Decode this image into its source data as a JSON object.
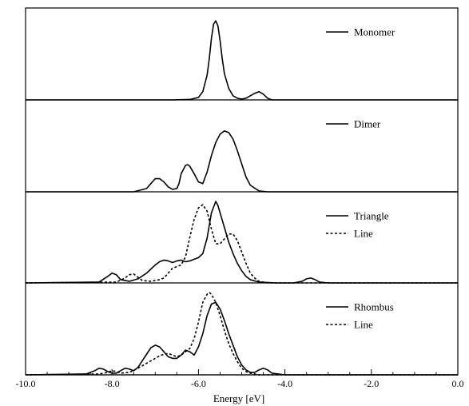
{
  "chart_data": {
    "type": "line",
    "xlabel": "Energy [eV]",
    "xlim": [
      -10.0,
      0.0
    ],
    "x_ticks": [
      -10.0,
      -8.0,
      -6.0,
      -4.0,
      -2.0,
      0.0
    ],
    "x_tick_labels": [
      "-10.0",
      "-8.0",
      "-6.0",
      "-4.0",
      "-2.0",
      "0.0"
    ],
    "grid": false,
    "legend_position": "top-right",
    "panels": [
      {
        "ylim": [
          0,
          1.0
        ],
        "series": [
          {
            "name": "Monomer",
            "style": "solid",
            "x": [
              -10.0,
              -6.6,
              -6.2,
              -6.0,
              -5.9,
              -5.8,
              -5.75,
              -5.7,
              -5.65,
              -5.6,
              -5.55,
              -5.5,
              -5.45,
              -5.4,
              -5.3,
              -5.2,
              -5.1,
              -5.0,
              -4.9,
              -4.8,
              -4.7,
              -4.6,
              -4.5,
              -4.4,
              -4.3,
              -3.0,
              0.0
            ],
            "y": [
              0,
              0,
              0.005,
              0.03,
              0.1,
              0.3,
              0.5,
              0.75,
              0.92,
              0.96,
              0.9,
              0.72,
              0.5,
              0.32,
              0.14,
              0.05,
              0.02,
              0.01,
              0.02,
              0.05,
              0.08,
              0.1,
              0.07,
              0.02,
              0.0,
              0,
              0
            ]
          }
        ]
      },
      {
        "ylim": [
          0,
          1.0
        ],
        "series": [
          {
            "name": "Dimer",
            "style": "solid",
            "x": [
              -10.0,
              -7.5,
              -7.2,
              -7.1,
              -7.0,
              -6.9,
              -6.8,
              -6.7,
              -6.6,
              -6.5,
              -6.45,
              -6.4,
              -6.3,
              -6.25,
              -6.2,
              -6.1,
              -6.0,
              -5.9,
              -5.8,
              -5.7,
              -5.6,
              -5.5,
              -5.4,
              -5.3,
              -5.2,
              -5.1,
              -5.0,
              -4.9,
              -4.8,
              -4.6,
              -4.4,
              -4.2,
              -3.0,
              0.0
            ],
            "y": [
              0,
              0,
              0.04,
              0.1,
              0.16,
              0.16,
              0.12,
              0.06,
              0.03,
              0.04,
              0.1,
              0.22,
              0.32,
              0.33,
              0.31,
              0.22,
              0.12,
              0.1,
              0.24,
              0.44,
              0.6,
              0.7,
              0.74,
              0.72,
              0.64,
              0.5,
              0.34,
              0.18,
              0.08,
              0.01,
              0.0,
              0.0,
              0,
              0
            ]
          }
        ]
      },
      {
        "ylim": [
          0,
          1.0
        ],
        "series": [
          {
            "name": "Triangle",
            "style": "solid",
            "x": [
              -10.0,
              -8.3,
              -8.1,
              -8.0,
              -7.9,
              -7.8,
              -7.6,
              -7.4,
              -7.2,
              -7.0,
              -6.9,
              -6.8,
              -6.7,
              -6.6,
              -6.5,
              -6.4,
              -6.3,
              -6.2,
              -6.1,
              -6.0,
              -5.9,
              -5.8,
              -5.7,
              -5.6,
              -5.55,
              -5.5,
              -5.4,
              -5.3,
              -5.2,
              -5.1,
              -5.0,
              -4.9,
              -4.8,
              -4.6,
              -4.2,
              -3.8,
              -3.6,
              -3.5,
              -3.4,
              -3.3,
              -3.2,
              -3.0,
              0.0
            ],
            "y": [
              0,
              0.01,
              0.08,
              0.12,
              0.1,
              0.04,
              0.02,
              0.05,
              0.12,
              0.22,
              0.26,
              0.28,
              0.27,
              0.25,
              0.27,
              0.28,
              0.26,
              0.27,
              0.29,
              0.31,
              0.36,
              0.55,
              0.86,
              1.0,
              0.95,
              0.86,
              0.68,
              0.5,
              0.36,
              0.24,
              0.15,
              0.08,
              0.04,
              0.01,
              0.0,
              0.0,
              0.02,
              0.05,
              0.06,
              0.04,
              0.01,
              0,
              0
            ]
          },
          {
            "name": "Line",
            "style": "dashed",
            "x": [
              -10.0,
              -7.9,
              -7.7,
              -7.6,
              -7.5,
              -7.4,
              -7.3,
              -7.1,
              -6.9,
              -6.8,
              -6.6,
              -6.4,
              -6.3,
              -6.2,
              -6.1,
              -6.0,
              -5.9,
              -5.8,
              -5.7,
              -5.6,
              -5.5,
              -5.4,
              -5.3,
              -5.2,
              -5.1,
              -5.0,
              -4.9,
              -4.8,
              -4.7,
              -4.6,
              -4.4,
              -4.0,
              0.0
            ],
            "y": [
              0,
              0.01,
              0.06,
              0.1,
              0.11,
              0.07,
              0.03,
              0.02,
              0.04,
              0.06,
              0.18,
              0.22,
              0.32,
              0.56,
              0.78,
              0.92,
              0.96,
              0.88,
              0.66,
              0.48,
              0.48,
              0.54,
              0.6,
              0.6,
              0.52,
              0.38,
              0.24,
              0.12,
              0.06,
              0.02,
              0.0,
              0,
              0
            ]
          }
        ]
      },
      {
        "ylim": [
          0,
          1.0
        ],
        "series": [
          {
            "name": "Rhombus",
            "style": "solid",
            "x": [
              -10.0,
              -8.6,
              -8.4,
              -8.3,
              -8.2,
              -8.1,
              -8.0,
              -7.9,
              -7.8,
              -7.7,
              -7.6,
              -7.5,
              -7.4,
              -7.3,
              -7.2,
              -7.1,
              -7.0,
              -6.9,
              -6.8,
              -6.7,
              -6.6,
              -6.5,
              -6.4,
              -6.3,
              -6.2,
              -6.1,
              -6.0,
              -5.9,
              -5.8,
              -5.7,
              -5.6,
              -5.5,
              -5.4,
              -5.3,
              -5.2,
              -5.1,
              -5.0,
              -4.9,
              -4.8,
              -4.7,
              -4.6,
              -4.5,
              -4.4,
              -4.3,
              -4.0,
              0.0
            ],
            "y": [
              0,
              0.01,
              0.05,
              0.08,
              0.07,
              0.04,
              0.02,
              0.02,
              0.05,
              0.08,
              0.07,
              0.05,
              0.09,
              0.17,
              0.25,
              0.33,
              0.36,
              0.34,
              0.28,
              0.22,
              0.2,
              0.2,
              0.24,
              0.3,
              0.28,
              0.24,
              0.34,
              0.5,
              0.72,
              0.86,
              0.88,
              0.8,
              0.66,
              0.5,
              0.36,
              0.22,
              0.12,
              0.06,
              0.03,
              0.03,
              0.06,
              0.08,
              0.06,
              0.02,
              0,
              0
            ]
          },
          {
            "name": "Line",
            "style": "dashed",
            "x": [
              -10.0,
              -8.3,
              -8.1,
              -8.0,
              -7.9,
              -7.8,
              -7.6,
              -7.4,
              -7.2,
              -7.0,
              -6.9,
              -6.8,
              -6.7,
              -6.6,
              -6.5,
              -6.4,
              -6.3,
              -6.2,
              -6.1,
              -6.0,
              -5.9,
              -5.8,
              -5.75,
              -5.7,
              -5.6,
              -5.5,
              -5.4,
              -5.3,
              -5.2,
              -5.1,
              -5.0,
              -4.9,
              -4.8,
              -4.6,
              -4.4,
              0.0
            ],
            "y": [
              0,
              0.01,
              0.03,
              0.05,
              0.04,
              0.02,
              0.03,
              0.08,
              0.14,
              0.2,
              0.23,
              0.25,
              0.26,
              0.24,
              0.22,
              0.24,
              0.28,
              0.32,
              0.44,
              0.64,
              0.88,
              0.98,
              1.0,
              0.98,
              0.88,
              0.72,
              0.54,
              0.38,
              0.26,
              0.16,
              0.08,
              0.04,
              0.02,
              0.0,
              0,
              0
            ]
          }
        ]
      }
    ]
  }
}
